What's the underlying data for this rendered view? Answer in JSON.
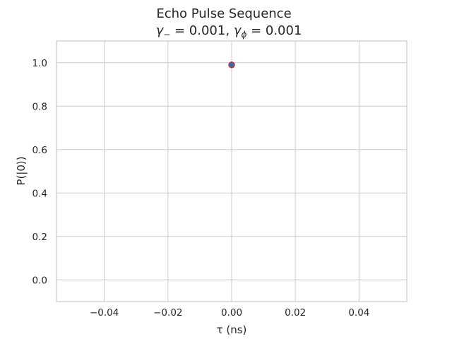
{
  "chart_data": {
    "type": "scatter",
    "title_line1": "Echo Pulse Sequence",
    "title_line2_parts": {
      "gamma_minus_sym": "γ",
      "gamma_minus_sub": "−",
      "gamma_minus_value": " = 0.001, ",
      "gamma_phi_sym": "γ",
      "gamma_phi_sub": "ϕ",
      "gamma_phi_value": " = 0.001"
    },
    "xlabel": "τ (ns)",
    "ylabel": "P(|0⟩)",
    "xlim": [
      -0.055,
      0.055
    ],
    "ylim": [
      -0.1,
      1.1
    ],
    "xticks": [
      -0.04,
      -0.02,
      0.0,
      0.02,
      0.04
    ],
    "xtick_labels": [
      "−0.04",
      "−0.02",
      "0.00",
      "0.02",
      "0.04"
    ],
    "yticks": [
      0.0,
      0.2,
      0.4,
      0.6,
      0.8,
      1.0
    ],
    "ytick_labels": [
      "0.0",
      "0.2",
      "0.4",
      "0.6",
      "0.8",
      "1.0"
    ],
    "grid": true,
    "series": [
      {
        "name": "P(|0⟩)",
        "x": [
          0.0
        ],
        "y": [
          0.99
        ],
        "face_color": "#1f77b4",
        "edge_color": "#d62728"
      }
    ],
    "colors": {
      "grid": "#cccccc",
      "spine": "#cccccc",
      "text": "#262626"
    }
  }
}
